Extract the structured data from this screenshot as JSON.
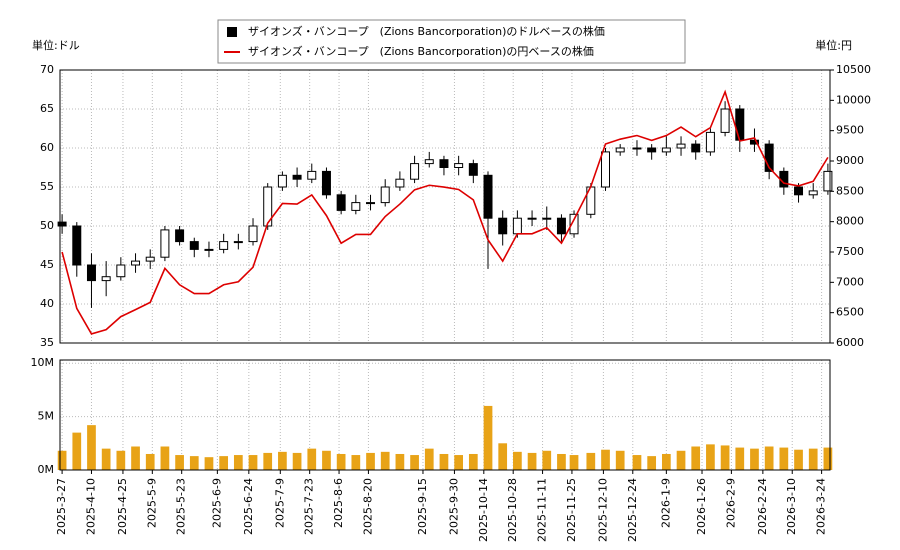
{
  "chart_data": [
    {
      "type": "candlestick",
      "y_label": "単位:ドル",
      "y2_label": "単位:円",
      "x": [
        "2025-3-27",
        "2025-4-3",
        "2025-4-10",
        "2025-4-17",
        "2025-4-24",
        "2025-5-1",
        "2025-5-8",
        "2025-5-15",
        "2025-5-22",
        "2025-5-29",
        "2025-6-5",
        "2025-6-12",
        "2025-6-19",
        "2025-6-26",
        "2025-7-3",
        "2025-7-10",
        "2025-7-17",
        "2025-7-24",
        "2025-7-31",
        "2025-8-7",
        "2025-8-14",
        "2025-8-21",
        "2025-8-28",
        "2025-9-4",
        "2025-9-11",
        "2025-9-18",
        "2025-9-25",
        "2025-10-2",
        "2025-10-9",
        "2025-10-16",
        "2025-10-23",
        "2025-10-30",
        "2025-11-6",
        "2025-11-13",
        "2025-11-20",
        "2025-11-26",
        "2025-12-4",
        "2025-12-11",
        "2025-12-18",
        "2025-12-26",
        "2026-1-2",
        "2026-1-9",
        "2026-1-16",
        "2026-1-23",
        "2026-1-30",
        "2026-2-6",
        "2026-2-13",
        "2026-2-20",
        "2026-2-27",
        "2026-3-6",
        "2026-3-13",
        "2026-3-20",
        "2026-3-27"
      ],
      "series": [
        {
          "name": "ザイオンズ・バンコープ　(Zions Bancorporation)のドルベースの株価",
          "color": "#000000",
          "open": [
            50.5,
            50,
            45,
            43,
            43.5,
            45,
            45.5,
            46,
            49.5,
            48,
            47,
            47,
            48,
            48,
            50,
            55,
            56.5,
            56,
            57,
            54,
            52,
            53,
            53,
            55,
            56,
            58,
            58.5,
            57.5,
            58,
            56.5,
            51,
            49,
            51,
            51,
            51,
            49,
            51.5,
            55,
            59.5,
            60,
            60,
            59.5,
            60,
            60.5,
            59.5,
            62,
            65,
            61,
            60.5,
            57,
            55,
            54,
            54.5
          ],
          "high": [
            51.5,
            50.5,
            46.5,
            45.5,
            46,
            46.5,
            47,
            50,
            50,
            48.5,
            48,
            49,
            49,
            51,
            55.5,
            57,
            57.5,
            58,
            57.5,
            54.5,
            54,
            54,
            56,
            57,
            59,
            59.5,
            59,
            59,
            58.5,
            57,
            52,
            52,
            52,
            52.5,
            51.5,
            52,
            55.5,
            60,
            60.5,
            61,
            60.5,
            61.5,
            61.5,
            61,
            62.5,
            66,
            65.5,
            62.5,
            61,
            57.5,
            55.5,
            55.5,
            58
          ],
          "low": [
            49,
            43.5,
            39.5,
            41,
            43,
            44,
            44.5,
            45.5,
            47.5,
            46,
            46,
            46.5,
            47,
            47.5,
            49.5,
            54.5,
            55,
            55.5,
            53.5,
            51.5,
            51.5,
            52,
            52.5,
            54.5,
            55.5,
            57.5,
            56.5,
            56.5,
            55.5,
            44.5,
            47.5,
            48.5,
            50,
            49.5,
            48,
            48.5,
            51,
            54.5,
            59,
            59,
            58.5,
            59,
            59,
            58.5,
            59,
            61.5,
            59.5,
            59.5,
            56,
            54,
            53,
            53.5,
            54
          ],
          "close": [
            50,
            45,
            43,
            43.5,
            45,
            45.5,
            46,
            49.5,
            48,
            47,
            47,
            48,
            48,
            50,
            55,
            56.5,
            56,
            57,
            54,
            52,
            53,
            53,
            55,
            56,
            58,
            58.5,
            57.5,
            58,
            56.5,
            51,
            49,
            51,
            51,
            51,
            49,
            51.5,
            55,
            59.5,
            60,
            60,
            59.5,
            60,
            60.5,
            59.5,
            62,
            65,
            61,
            60.5,
            57,
            55,
            54,
            54.5,
            57
          ]
        },
        {
          "name": "ザイオンズ・バンコープ　(Zions Bancorporation)の円ベースの株価",
          "color": "#dd0000",
          "type": "line",
          "axis": "y2",
          "values": [
            7500,
            6570,
            6150,
            6220,
            6435,
            6550,
            6670,
            7230,
            6960,
            6815,
            6815,
            6960,
            7010,
            7250,
            7975,
            8300,
            8290,
            8440,
            8100,
            7645,
            7790,
            7790,
            8085,
            8290,
            8525,
            8600,
            8570,
            8530,
            8360,
            7700,
            7350,
            7800,
            7800,
            7900,
            7645,
            8035,
            8580,
            9280,
            9360,
            9420,
            9340,
            9420,
            9560,
            9400,
            9550,
            10140,
            9330,
            9380,
            8890,
            8635,
            8590,
            8665,
            9060
          ]
        }
      ],
      "xlim": [
        "2025-3-26",
        "2026-3-28"
      ],
      "ylim": [
        35,
        70
      ],
      "yticks": [
        35,
        40,
        45,
        50,
        55,
        60,
        65,
        70
      ],
      "y2lim": [
        6000,
        10500
      ],
      "y2ticks": [
        6000,
        6500,
        7000,
        7500,
        8000,
        8500,
        9000,
        9500,
        10000,
        10500
      ],
      "grid": true
    },
    {
      "type": "bar",
      "color": "#e8a317",
      "values": [
        1.8,
        3.5,
        4.2,
        2.0,
        1.8,
        2.2,
        1.5,
        2.2,
        1.4,
        1.3,
        1.2,
        1.3,
        1.4,
        1.4,
        1.6,
        1.7,
        1.6,
        2.0,
        1.8,
        1.5,
        1.4,
        1.6,
        1.7,
        1.5,
        1.4,
        2.0,
        1.5,
        1.4,
        1.5,
        6.0,
        2.5,
        1.7,
        1.6,
        1.8,
        1.5,
        1.4,
        1.6,
        1.9,
        1.8,
        1.4,
        1.3,
        1.5,
        1.8,
        2.2,
        2.4,
        2.3,
        2.1,
        2.0,
        2.2,
        2.1,
        1.9,
        2.0,
        2.1
      ],
      "ylim": [
        0,
        10.3
      ],
      "yticks": [
        {
          "value": 0,
          "label": "0M"
        },
        {
          "value": 5,
          "label": "5M"
        },
        {
          "value": 10,
          "label": "10M"
        }
      ],
      "xticks": [
        "2025-3-27",
        "2025-4-10",
        "2025-4-25",
        "2025-5-9",
        "2025-5-23",
        "2025-6-9",
        "2025-6-24",
        "2025-7-9",
        "2025-7-23",
        "2025-8-6",
        "2025-8-20",
        "2025-9-15",
        "2025-9-30",
        "2025-10-14",
        "2025-10-28",
        "2025-11-11",
        "2025-11-25",
        "2025-12-10",
        "2025-12-24",
        "2026-1-9",
        "2026-1-26",
        "2026-2-9",
        "2026-2-24",
        "2026-3-10",
        "2026-3-24"
      ],
      "grid": true
    }
  ]
}
